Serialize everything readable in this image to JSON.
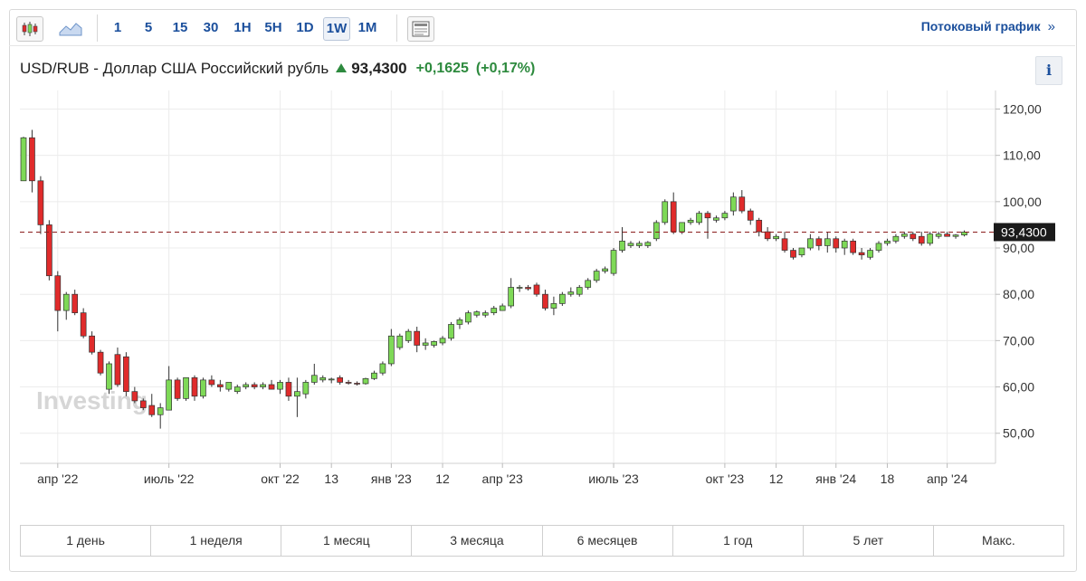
{
  "toolbar": {
    "timeframes": [
      "1",
      "5",
      "15",
      "30",
      "1H",
      "5H",
      "1D",
      "1W",
      "1M"
    ],
    "active_timeframe": "1W",
    "stream_link": "Потоковый график",
    "stream_arrow": "»"
  },
  "instrument": {
    "name": "USD/RUB - Доллар США Российский рубль",
    "price": "93,4300",
    "change": "+0,1625",
    "change_pct": "(+0,17%)",
    "info": "i",
    "colors": {
      "up": "#2d8a3e",
      "candle_up": "#7ed957",
      "candle_down": "#e02b2b"
    }
  },
  "ranges": [
    "1 день",
    "1 неделя",
    "1 месяц",
    "3 месяца",
    "6 месяцев",
    "1 год",
    "5 лет",
    "Макс."
  ],
  "chart_data": {
    "type": "candlestick",
    "title": "USD/RUB - Доллар США Российский рубль",
    "ylim": [
      43.5,
      124
    ],
    "y_ticks": [
      120,
      110,
      100,
      90,
      80,
      70,
      60,
      50
    ],
    "y_tick_labels": [
      "120,00",
      "110,00",
      "100,00",
      "90,00",
      "80,00",
      "70,00",
      "60,00",
      "50,00"
    ],
    "current_price": 93.43,
    "current_price_label": "93,4300",
    "x_labels": [
      "апр '22",
      "июль '22",
      "окт '22",
      "13",
      "янв '23",
      "12",
      "апр '23",
      "июль '23",
      "окт '23",
      "12",
      "янв '24",
      "18",
      "апр '24"
    ],
    "x_label_candle_index": [
      4,
      17,
      30,
      36,
      43,
      49,
      56,
      69,
      82,
      88,
      95,
      101,
      108
    ],
    "grid_candle_index": [
      4,
      17,
      30,
      36,
      43,
      49,
      56,
      69,
      82,
      88,
      95,
      101,
      108
    ],
    "watermark": "Investing",
    "candles": [
      {
        "o": 104.5,
        "h": 114.0,
        "l": 104.5,
        "c": 113.8
      },
      {
        "o": 113.8,
        "h": 115.5,
        "l": 102.0,
        "c": 104.5
      },
      {
        "o": 104.5,
        "h": 105.5,
        "l": 93.0,
        "c": 95.0
      },
      {
        "o": 95.0,
        "h": 96.0,
        "l": 83.0,
        "c": 84.0
      },
      {
        "o": 84.0,
        "h": 85.0,
        "l": 72.0,
        "c": 76.5
      },
      {
        "o": 76.5,
        "h": 80.5,
        "l": 74.5,
        "c": 80.0
      },
      {
        "o": 80.0,
        "h": 81.0,
        "l": 75.5,
        "c": 76.0
      },
      {
        "o": 76.0,
        "h": 77.0,
        "l": 70.5,
        "c": 71.0
      },
      {
        "o": 71.0,
        "h": 72.0,
        "l": 67.0,
        "c": 67.5
      },
      {
        "o": 67.5,
        "h": 68.0,
        "l": 62.5,
        "c": 63.0
      },
      {
        "o": 59.5,
        "h": 65.5,
        "l": 58.5,
        "c": 65.0
      },
      {
        "o": 67.0,
        "h": 68.5,
        "l": 60.0,
        "c": 60.5
      },
      {
        "o": 66.5,
        "h": 67.5,
        "l": 58.0,
        "c": 59.0
      },
      {
        "o": 59.0,
        "h": 60.0,
        "l": 56.5,
        "c": 57.0
      },
      {
        "o": 57.0,
        "h": 57.5,
        "l": 55.0,
        "c": 55.5
      },
      {
        "o": 56.0,
        "h": 58.5,
        "l": 53.5,
        "c": 54.0
      },
      {
        "o": 54.0,
        "h": 56.5,
        "l": 51.0,
        "c": 55.5
      },
      {
        "o": 55.0,
        "h": 64.5,
        "l": 55.0,
        "c": 61.5
      },
      {
        "o": 61.5,
        "h": 62.0,
        "l": 57.0,
        "c": 57.5
      },
      {
        "o": 57.5,
        "h": 62.0,
        "l": 57.0,
        "c": 62.0
      },
      {
        "o": 62.0,
        "h": 62.5,
        "l": 57.0,
        "c": 58.0
      },
      {
        "o": 58.0,
        "h": 62.0,
        "l": 57.5,
        "c": 61.5
      },
      {
        "o": 61.5,
        "h": 62.5,
        "l": 60.0,
        "c": 60.5
      },
      {
        "o": 60.5,
        "h": 61.5,
        "l": 59.0,
        "c": 60.0
      },
      {
        "o": 59.5,
        "h": 61.0,
        "l": 59.0,
        "c": 61.0
      },
      {
        "o": 59.0,
        "h": 60.5,
        "l": 58.5,
        "c": 60.0
      },
      {
        "o": 60.0,
        "h": 61.0,
        "l": 59.5,
        "c": 60.5
      },
      {
        "o": 60.5,
        "h": 61.0,
        "l": 59.5,
        "c": 60.0
      },
      {
        "o": 60.0,
        "h": 61.0,
        "l": 59.5,
        "c": 60.5
      },
      {
        "o": 60.5,
        "h": 61.5,
        "l": 59.5,
        "c": 59.5
      },
      {
        "o": 59.5,
        "h": 61.5,
        "l": 58.5,
        "c": 61.0
      },
      {
        "o": 61.0,
        "h": 62.0,
        "l": 57.0,
        "c": 58.0
      },
      {
        "o": 58.0,
        "h": 62.0,
        "l": 53.5,
        "c": 59.0
      },
      {
        "o": 58.5,
        "h": 61.5,
        "l": 57.5,
        "c": 61.0
      },
      {
        "o": 61.0,
        "h": 65.0,
        "l": 60.5,
        "c": 62.5
      },
      {
        "o": 61.5,
        "h": 62.5,
        "l": 61.0,
        "c": 62.0
      },
      {
        "o": 61.5,
        "h": 62.0,
        "l": 60.8,
        "c": 61.7
      },
      {
        "o": 62.0,
        "h": 62.5,
        "l": 60.5,
        "c": 61.0
      },
      {
        "o": 61.0,
        "h": 61.5,
        "l": 60.5,
        "c": 60.8
      },
      {
        "o": 60.8,
        "h": 61.2,
        "l": 60.3,
        "c": 60.7
      },
      {
        "o": 60.7,
        "h": 62.0,
        "l": 60.5,
        "c": 61.8
      },
      {
        "o": 61.8,
        "h": 63.5,
        "l": 61.5,
        "c": 63.0
      },
      {
        "o": 63.0,
        "h": 65.5,
        "l": 62.5,
        "c": 65.0
      },
      {
        "o": 65.0,
        "h": 72.5,
        "l": 64.5,
        "c": 71.0
      },
      {
        "o": 68.5,
        "h": 71.5,
        "l": 68.0,
        "c": 71.0
      },
      {
        "o": 70.0,
        "h": 72.5,
        "l": 69.5,
        "c": 72.0
      },
      {
        "o": 72.0,
        "h": 73.0,
        "l": 67.5,
        "c": 69.0
      },
      {
        "o": 69.0,
        "h": 70.5,
        "l": 68.0,
        "c": 69.5
      },
      {
        "o": 69.0,
        "h": 70.0,
        "l": 68.5,
        "c": 69.8
      },
      {
        "o": 69.5,
        "h": 71.0,
        "l": 69.0,
        "c": 70.5
      },
      {
        "o": 70.5,
        "h": 74.0,
        "l": 70.0,
        "c": 73.5
      },
      {
        "o": 73.5,
        "h": 75.0,
        "l": 72.5,
        "c": 74.5
      },
      {
        "o": 74.0,
        "h": 76.5,
        "l": 73.5,
        "c": 76.0
      },
      {
        "o": 75.5,
        "h": 76.5,
        "l": 75.0,
        "c": 76.2
      },
      {
        "o": 75.5,
        "h": 76.5,
        "l": 75.0,
        "c": 76.0
      },
      {
        "o": 76.0,
        "h": 77.5,
        "l": 75.5,
        "c": 77.0
      },
      {
        "o": 76.5,
        "h": 78.0,
        "l": 76.5,
        "c": 77.5
      },
      {
        "o": 77.5,
        "h": 83.5,
        "l": 77.0,
        "c": 81.5
      },
      {
        "o": 81.5,
        "h": 82.0,
        "l": 80.5,
        "c": 81.5
      },
      {
        "o": 81.5,
        "h": 82.0,
        "l": 80.8,
        "c": 81.2
      },
      {
        "o": 82.0,
        "h": 82.5,
        "l": 79.5,
        "c": 80.0
      },
      {
        "o": 80.0,
        "h": 81.0,
        "l": 76.5,
        "c": 77.0
      },
      {
        "o": 77.0,
        "h": 79.5,
        "l": 75.5,
        "c": 78.0
      },
      {
        "o": 78.0,
        "h": 80.5,
        "l": 77.5,
        "c": 80.0
      },
      {
        "o": 80.0,
        "h": 81.5,
        "l": 79.5,
        "c": 80.5
      },
      {
        "o": 80.0,
        "h": 82.0,
        "l": 79.5,
        "c": 81.5
      },
      {
        "o": 81.5,
        "h": 83.5,
        "l": 81.0,
        "c": 83.0
      },
      {
        "o": 83.0,
        "h": 85.5,
        "l": 82.5,
        "c": 85.0
      },
      {
        "o": 85.0,
        "h": 86.0,
        "l": 84.5,
        "c": 85.5
      },
      {
        "o": 84.5,
        "h": 90.0,
        "l": 84.0,
        "c": 89.5
      },
      {
        "o": 89.5,
        "h": 94.5,
        "l": 89.0,
        "c": 91.5
      },
      {
        "o": 90.5,
        "h": 91.5,
        "l": 90.0,
        "c": 91.0
      },
      {
        "o": 90.5,
        "h": 91.5,
        "l": 90.0,
        "c": 91.0
      },
      {
        "o": 90.5,
        "h": 91.5,
        "l": 90.0,
        "c": 91.2
      },
      {
        "o": 92.0,
        "h": 96.0,
        "l": 91.5,
        "c": 95.5
      },
      {
        "o": 95.5,
        "h": 100.5,
        "l": 95.0,
        "c": 100.0
      },
      {
        "o": 100.0,
        "h": 102.0,
        "l": 93.0,
        "c": 93.5
      },
      {
        "o": 93.5,
        "h": 95.5,
        "l": 93.0,
        "c": 95.5
      },
      {
        "o": 95.5,
        "h": 96.5,
        "l": 95.0,
        "c": 96.0
      },
      {
        "o": 95.5,
        "h": 98.0,
        "l": 95.0,
        "c": 97.5
      },
      {
        "o": 97.5,
        "h": 98.0,
        "l": 92.0,
        "c": 96.5
      },
      {
        "o": 96.0,
        "h": 97.0,
        "l": 95.5,
        "c": 96.5
      },
      {
        "o": 96.5,
        "h": 98.0,
        "l": 96.0,
        "c": 97.5
      },
      {
        "o": 98.0,
        "h": 102.0,
        "l": 97.0,
        "c": 101.0
      },
      {
        "o": 101.0,
        "h": 102.5,
        "l": 97.5,
        "c": 98.0
      },
      {
        "o": 98.0,
        "h": 98.5,
        "l": 95.0,
        "c": 96.0
      },
      {
        "o": 96.0,
        "h": 96.5,
        "l": 92.5,
        "c": 93.5
      },
      {
        "o": 93.5,
        "h": 94.5,
        "l": 91.5,
        "c": 92.0
      },
      {
        "o": 92.0,
        "h": 93.0,
        "l": 91.5,
        "c": 92.5
      },
      {
        "o": 92.0,
        "h": 93.5,
        "l": 89.0,
        "c": 89.5
      },
      {
        "o": 89.5,
        "h": 90.0,
        "l": 87.5,
        "c": 88.0
      },
      {
        "o": 88.5,
        "h": 90.0,
        "l": 88.0,
        "c": 90.0
      },
      {
        "o": 90.0,
        "h": 93.0,
        "l": 89.5,
        "c": 92.0
      },
      {
        "o": 92.0,
        "h": 92.5,
        "l": 89.5,
        "c": 90.5
      },
      {
        "o": 90.5,
        "h": 93.5,
        "l": 89.0,
        "c": 92.0
      },
      {
        "o": 92.0,
        "h": 92.5,
        "l": 89.0,
        "c": 90.0
      },
      {
        "o": 90.0,
        "h": 92.0,
        "l": 88.5,
        "c": 91.5
      },
      {
        "o": 91.5,
        "h": 92.0,
        "l": 88.5,
        "c": 89.0
      },
      {
        "o": 89.0,
        "h": 90.0,
        "l": 87.5,
        "c": 88.5
      },
      {
        "o": 88.0,
        "h": 90.0,
        "l": 87.5,
        "c": 89.5
      },
      {
        "o": 89.5,
        "h": 91.5,
        "l": 89.0,
        "c": 91.0
      },
      {
        "o": 91.0,
        "h": 92.0,
        "l": 90.5,
        "c": 91.5
      },
      {
        "o": 91.5,
        "h": 93.0,
        "l": 91.0,
        "c": 92.5
      },
      {
        "o": 92.5,
        "h": 93.5,
        "l": 92.0,
        "c": 93.0
      },
      {
        "o": 93.0,
        "h": 93.5,
        "l": 91.5,
        "c": 92.0
      },
      {
        "o": 92.5,
        "h": 93.5,
        "l": 90.5,
        "c": 91.0
      },
      {
        "o": 91.0,
        "h": 93.5,
        "l": 90.5,
        "c": 93.0
      },
      {
        "o": 92.5,
        "h": 93.5,
        "l": 92.0,
        "c": 93.0
      },
      {
        "o": 93.0,
        "h": 93.5,
        "l": 92.5,
        "c": 92.5
      },
      {
        "o": 92.5,
        "h": 93.0,
        "l": 92.0,
        "c": 92.8
      },
      {
        "o": 92.8,
        "h": 93.8,
        "l": 92.5,
        "c": 93.43
      }
    ]
  }
}
